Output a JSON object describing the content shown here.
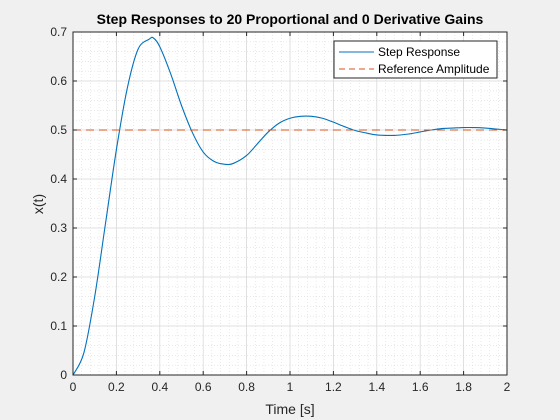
{
  "chart_data": {
    "type": "line",
    "title": "Step Responses to 20 Proportional and 0 Derivative Gains",
    "xlabel": "Time [s]",
    "ylabel": "x(t)",
    "xlim": [
      0,
      2
    ],
    "ylim": [
      0,
      0.7
    ],
    "xticks": [
      "0",
      "0.2",
      "0.4",
      "0.6",
      "0.8",
      "1",
      "1.2",
      "1.4",
      "1.6",
      "1.8",
      "2"
    ],
    "yticks": [
      "0",
      "0.1",
      "0.2",
      "0.3",
      "0.4",
      "0.5",
      "0.6",
      "0.7"
    ],
    "grid": true,
    "minor_grid": true,
    "legend_position": "top-right",
    "series": [
      {
        "name": "Step Response",
        "color": "#0072BD",
        "style": "solid",
        "x": [
          0,
          0.05,
          0.1,
          0.15,
          0.2,
          0.25,
          0.3,
          0.35,
          0.37,
          0.4,
          0.45,
          0.5,
          0.55,
          0.6,
          0.65,
          0.7,
          0.74,
          0.8,
          0.85,
          0.9,
          0.95,
          1.0,
          1.05,
          1.1,
          1.15,
          1.2,
          1.25,
          1.3,
          1.35,
          1.4,
          1.48,
          1.55,
          1.6,
          1.65,
          1.7,
          1.75,
          1.8,
          1.85,
          1.9,
          1.95,
          2.0
        ],
        "y": [
          0,
          0.045,
          0.16,
          0.31,
          0.46,
          0.585,
          0.665,
          0.685,
          0.688,
          0.67,
          0.615,
          0.55,
          0.495,
          0.455,
          0.436,
          0.43,
          0.432,
          0.448,
          0.472,
          0.496,
          0.514,
          0.524,
          0.528,
          0.528,
          0.524,
          0.516,
          0.507,
          0.499,
          0.494,
          0.49,
          0.489,
          0.492,
          0.496,
          0.5,
          0.503,
          0.504,
          0.505,
          0.505,
          0.504,
          0.502,
          0.5
        ]
      },
      {
        "name": "Reference Amplitude",
        "color": "#D95319",
        "style": "dashed",
        "x": [
          0,
          2
        ],
        "y": [
          0.5,
          0.5
        ]
      }
    ]
  }
}
